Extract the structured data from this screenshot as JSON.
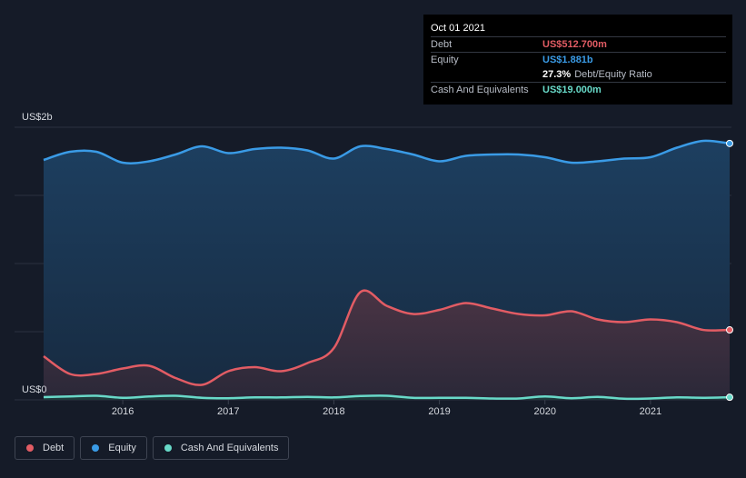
{
  "tooltip": {
    "date": "Oct 01 2021",
    "debt_label": "Debt",
    "debt_value": "US$512.700m",
    "equity_label": "Equity",
    "equity_value": "US$1.881b",
    "ratio_value": "27.3%",
    "ratio_label": "Debt/Equity Ratio",
    "cash_label": "Cash And Equivalents",
    "cash_value": "US$19.000m"
  },
  "legend": [
    {
      "label": "Debt",
      "color": "#e25c64"
    },
    {
      "label": "Equity",
      "color": "#3a9be6"
    },
    {
      "label": "Cash And Equivalents",
      "color": "#68d9c8"
    }
  ],
  "chart_data": {
    "type": "area",
    "y_axis_labels": [
      "US$2b",
      "US$0"
    ],
    "ylim": [
      0,
      2.0
    ],
    "xlim": [
      2015.25,
      2021.75
    ],
    "x_ticks": [
      2016,
      2017,
      2018,
      2019,
      2020,
      2021
    ],
    "x_tick_labels": [
      "2016",
      "2017",
      "2018",
      "2019",
      "2020",
      "2021"
    ],
    "grid": true,
    "series": [
      {
        "name": "Equity",
        "color": "#3a9be6",
        "x": [
          2015.25,
          2015.5,
          2015.75,
          2016.0,
          2016.25,
          2016.5,
          2016.75,
          2017.0,
          2017.25,
          2017.5,
          2017.75,
          2018.0,
          2018.25,
          2018.5,
          2018.75,
          2019.0,
          2019.25,
          2019.5,
          2019.75,
          2020.0,
          2020.25,
          2020.5,
          2020.75,
          2021.0,
          2021.25,
          2021.5,
          2021.75
        ],
        "y": [
          1.76,
          1.82,
          1.82,
          1.74,
          1.75,
          1.8,
          1.86,
          1.81,
          1.84,
          1.85,
          1.83,
          1.77,
          1.86,
          1.84,
          1.8,
          1.75,
          1.79,
          1.8,
          1.8,
          1.78,
          1.74,
          1.75,
          1.77,
          1.78,
          1.85,
          1.9,
          1.881
        ]
      },
      {
        "name": "Debt",
        "color": "#e25c64",
        "x": [
          2015.25,
          2015.5,
          2015.75,
          2016.0,
          2016.25,
          2016.5,
          2016.75,
          2017.0,
          2017.25,
          2017.5,
          2017.75,
          2018.0,
          2018.25,
          2018.5,
          2018.75,
          2019.0,
          2019.25,
          2019.5,
          2019.75,
          2020.0,
          2020.25,
          2020.5,
          2020.75,
          2021.0,
          2021.25,
          2021.5,
          2021.75
        ],
        "y": [
          0.32,
          0.19,
          0.19,
          0.23,
          0.25,
          0.16,
          0.11,
          0.21,
          0.24,
          0.21,
          0.27,
          0.38,
          0.79,
          0.69,
          0.63,
          0.66,
          0.71,
          0.67,
          0.63,
          0.62,
          0.65,
          0.59,
          0.57,
          0.59,
          0.57,
          0.513,
          0.513
        ]
      },
      {
        "name": "Cash And Equivalents",
        "color": "#68d9c8",
        "x": [
          2015.25,
          2015.5,
          2015.75,
          2016.0,
          2016.25,
          2016.5,
          2016.75,
          2017.0,
          2017.25,
          2017.5,
          2017.75,
          2018.0,
          2018.25,
          2018.5,
          2018.75,
          2019.0,
          2019.25,
          2019.5,
          2019.75,
          2020.0,
          2020.25,
          2020.5,
          2020.75,
          2021.0,
          2021.25,
          2021.5,
          2021.75
        ],
        "y": [
          0.02,
          0.025,
          0.03,
          0.015,
          0.025,
          0.03,
          0.015,
          0.012,
          0.018,
          0.018,
          0.022,
          0.018,
          0.028,
          0.03,
          0.015,
          0.015,
          0.015,
          0.01,
          0.01,
          0.025,
          0.012,
          0.022,
          0.008,
          0.01,
          0.018,
          0.015,
          0.019
        ]
      }
    ]
  }
}
